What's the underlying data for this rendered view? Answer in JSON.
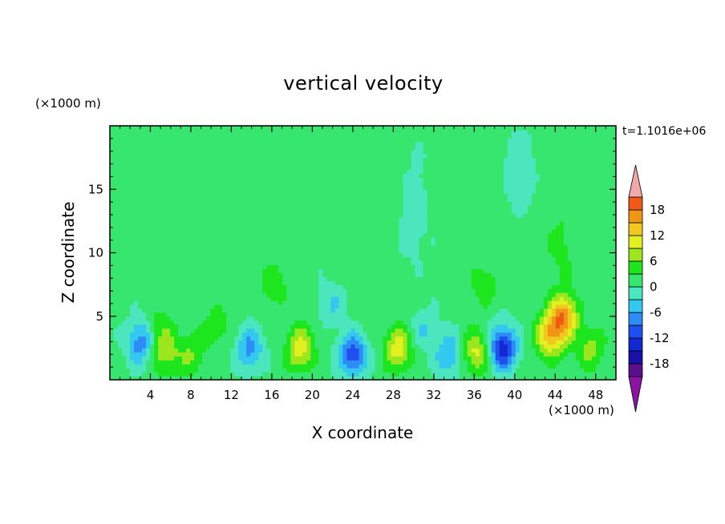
{
  "chart_data": {
    "type": "heatmap",
    "title": "vertical velocity",
    "xlabel": "X coordinate",
    "ylabel": "Z coordinate",
    "x_unit": "(×1000 m)",
    "y_unit": "(×1000 m)",
    "time_label": "t=1.1016e+06",
    "xlim": [
      0,
      50
    ],
    "ylim": [
      0,
      20
    ],
    "x_ticks": [
      "4",
      "8",
      "12",
      "16",
      "20",
      "24",
      "28",
      "32",
      "36",
      "40",
      "44",
      "48"
    ],
    "y_ticks": [
      "5",
      "10",
      "15"
    ],
    "colorbar": {
      "levels": [
        -21,
        -18,
        -15,
        -12,
        -9,
        -6,
        -3,
        0,
        3,
        6,
        9,
        12,
        15,
        18,
        21
      ],
      "labels": [
        "18",
        "12",
        "6",
        "0",
        "-6",
        "-12",
        "-18"
      ],
      "colors": [
        "#5a0f8c",
        "#1a0fa8",
        "#1428d2",
        "#1e50f0",
        "#2d8cf5",
        "#32c8f0",
        "#4be6be",
        "#37e66e",
        "#1ee61e",
        "#9be61e",
        "#e1f01e",
        "#f0c81e",
        "#f09614",
        "#f05a14",
        "#eb1e1e"
      ],
      "extend_low_color": "#8c14a0",
      "extend_high_color": "#f0a8a8"
    },
    "features": [
      {
        "x": 3.0,
        "z": 3.0,
        "value": -9
      },
      {
        "x": 5.0,
        "z": 4.0,
        "value": 4
      },
      {
        "x": 5.5,
        "z": 2.0,
        "value": 6
      },
      {
        "x": 8.0,
        "z": 2.0,
        "value": 5
      },
      {
        "x": 10.5,
        "z": 4.2,
        "value": 4
      },
      {
        "x": 13.8,
        "z": 2.5,
        "value": -8
      },
      {
        "x": 16.2,
        "z": 7.5,
        "value": 4
      },
      {
        "x": 18.8,
        "z": 2.5,
        "value": 10
      },
      {
        "x": 22.0,
        "z": 6.0,
        "value": -4
      },
      {
        "x": 24.0,
        "z": 2.0,
        "value": -12
      },
      {
        "x": 28.5,
        "z": 2.5,
        "value": 10
      },
      {
        "x": 31.0,
        "z": 4.0,
        "value": -4
      },
      {
        "x": 33.5,
        "z": 2.0,
        "value": -7
      },
      {
        "x": 36.2,
        "z": 2.2,
        "value": 9
      },
      {
        "x": 37.0,
        "z": 7.5,
        "value": 4
      },
      {
        "x": 38.8,
        "z": 2.5,
        "value": -15
      },
      {
        "x": 43.5,
        "z": 3.5,
        "value": 12
      },
      {
        "x": 44.8,
        "z": 5.0,
        "value": 15
      },
      {
        "x": 47.5,
        "z": 2.5,
        "value": 6
      },
      {
        "x": 44.5,
        "z": 10.5,
        "value": 3
      },
      {
        "x": 30.0,
        "z": 12.5,
        "value": -3
      },
      {
        "x": 40.5,
        "z": 16.5,
        "value": -4
      },
      {
        "x": 30.5,
        "z": 17.5,
        "value": -1
      }
    ]
  }
}
